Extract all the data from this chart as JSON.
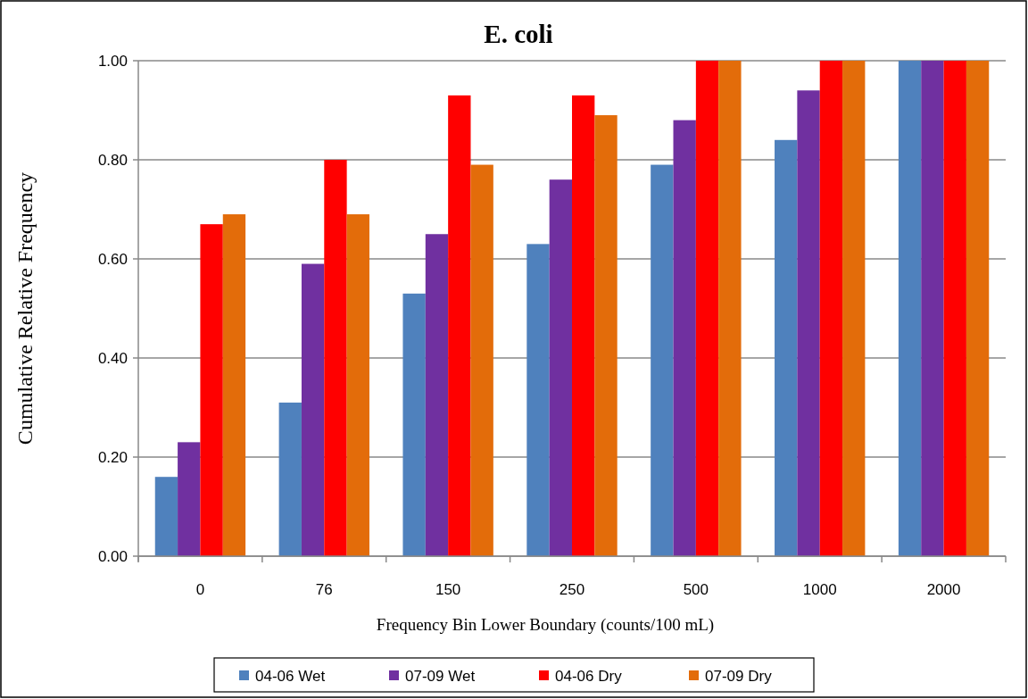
{
  "chart_data": {
    "type": "bar",
    "title": "E. coli",
    "xlabel": "Frequency Bin Lower Boundary (counts/100 mL)",
    "ylabel": "Cumulative Relative Frequency",
    "categories": [
      "0",
      "76",
      "150",
      "250",
      "500",
      "1000",
      "2000"
    ],
    "series": [
      {
        "name": "04-06 Wet",
        "color": "#4f81bd",
        "values": [
          0.16,
          0.31,
          0.53,
          0.63,
          0.79,
          0.84,
          1.0
        ]
      },
      {
        "name": "07-09 Wet",
        "color": "#7030a0",
        "values": [
          0.23,
          0.59,
          0.65,
          0.76,
          0.88,
          0.94,
          1.0
        ]
      },
      {
        "name": "04-06 Dry",
        "color": "#ff0000",
        "values": [
          0.67,
          0.8,
          0.93,
          0.93,
          1.0,
          1.0,
          1.0
        ]
      },
      {
        "name": "07-09 Dry",
        "color": "#e36c0a",
        "values": [
          0.69,
          0.69,
          0.79,
          0.89,
          1.0,
          1.0,
          1.0
        ]
      }
    ],
    "ylim": [
      0,
      1
    ],
    "yticks": [
      {
        "value": 0,
        "label": "0.00"
      },
      {
        "value": 0.2,
        "label": "0.20"
      },
      {
        "value": 0.4,
        "label": "0.40"
      },
      {
        "value": 0.6,
        "label": "0.60"
      },
      {
        "value": 0.8,
        "label": "0.80"
      },
      {
        "value": 1,
        "label": "1.00"
      }
    ],
    "grid": "y",
    "legend": "bottom"
  }
}
